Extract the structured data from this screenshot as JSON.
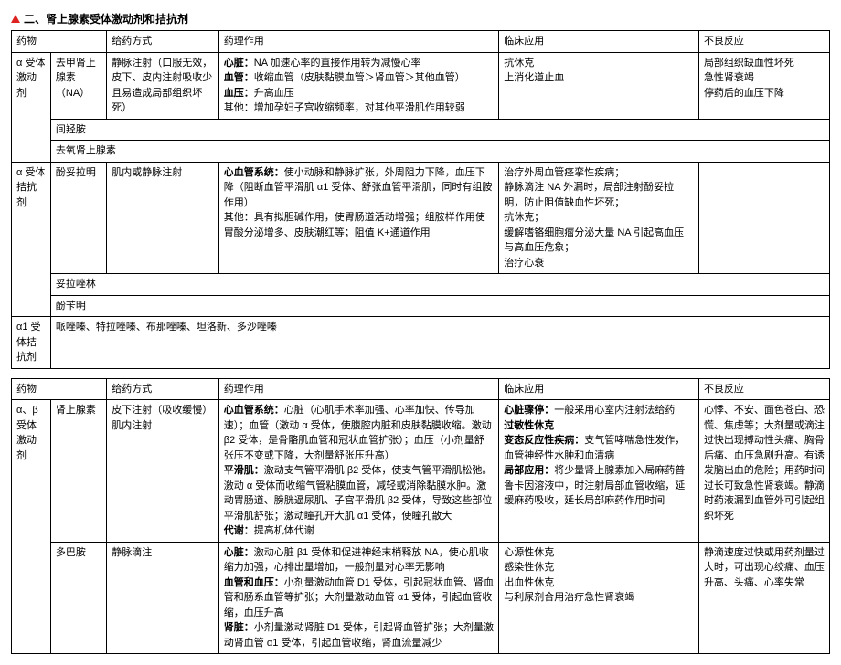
{
  "page_title": "二、肾上腺素受体激动剂和拮抗剂",
  "header": {
    "c0": "药物",
    "c2": "给药方式",
    "c3": "药理作用",
    "c4": "临床应用",
    "c5": "不良反应"
  },
  "t1": {
    "r1": {
      "cat": "α 受体激动剂",
      "drug": "去甲肾上腺素（NA）",
      "route": "静脉注射（口服无效，皮下、皮内注射吸收少且易造成局部组织坏死）",
      "pharm_b1": "心脏：",
      "pharm_t1": "NA 加速心率的直接作用转为减慢心率",
      "pharm_b2": "血管：",
      "pharm_t2": "收缩血管（皮肤黏膜血管＞肾血管＞其他血管）",
      "pharm_b3": "血压：",
      "pharm_t3": "升高血压",
      "pharm_t4": "其他：增加孕妇子宫收缩频率，对其他平滑肌作用较弱",
      "clin_l1": "抗休克",
      "clin_l2": "上消化道止血",
      "adv_l1": "局部组织缺血性坏死",
      "adv_l2": "急性肾衰竭",
      "adv_l3": "停药后的血压下降"
    },
    "r2": {
      "drug": "间羟胺"
    },
    "r3": {
      "drug": "去氧肾上腺素"
    },
    "r4": {
      "cat": "α 受体拮抗剂",
      "drug": "酚妥拉明",
      "route": "肌内或静脉注射",
      "pharm_b1": "心血管系统：",
      "pharm_t1": "使小动脉和静脉扩张，外周阻力下降，血压下降（阻断血管平滑肌 α1 受体、舒张血管平滑肌，同时有组胺作用）",
      "pharm_t2": "其他：具有拟胆碱作用，使胃肠道活动增强；组胺样作用使胃酸分泌增多、皮肤潮红等；阻值 K+通道作用",
      "clin_l1": "治疗外周血管痉挛性疾病；",
      "clin_l2": "静脉滴注 NA 外漏时，局部注射酚妥拉明，防止阻值缺血性坏死；",
      "clin_l3": "抗休克；",
      "clin_l4": "缓解嗜铬细胞瘤分泌大量 NA 引起高血压与高血压危象；",
      "clin_l5": "治疗心衰"
    },
    "r5": {
      "drug": "妥拉唑林"
    },
    "r6": {
      "drug": "酚苄明"
    },
    "r7": {
      "cat": "α1 受体拮抗剂",
      "drugs": "哌唑嗪、特拉唑嗪、布那唑嗪、坦洛新、多沙唑嗪"
    }
  },
  "t2": {
    "r1": {
      "cat": "α、β受体激动剂",
      "drug": "肾上腺素",
      "route_l1": "皮下注射（吸收缓慢）",
      "route_l2": "肌内注射",
      "pharm_b1": "心血管系统：",
      "pharm_t1": "心脏（心肌手术率加强、心率加快、传导加速）；血管（激动 α 受体，使腹腔内脏和皮肤黏膜收缩。激动 β2 受体，是骨骼肌血管和冠状血管扩张）；血压（小剂量舒张压不变或下降，大剂量舒张压升高）",
      "pharm_b2": "平滑肌：",
      "pharm_t2": "激动支气管平滑肌 β2 受体，使支气管平滑肌松弛。激动 α 受体而收缩气管粘膜血管，减轻或消除黏膜水肿。激动胃肠道、膀胱逼尿肌、子宫平滑肌 β2 受体，导致这些部位平滑肌舒张；激动瞳孔开大肌 α1 受体，使瞳孔散大",
      "pharm_b3": "代谢：",
      "pharm_t3": "提高机体代谢",
      "clin_b1": "心脏骤停：",
      "clin_t1": "一般采用心室内注射法给药",
      "clin_b2": "过敏性休克",
      "clin_b3": "变态反应性疾病：",
      "clin_t3": "支气管哮喘急性发作，血管神经性水肿和血清病",
      "clin_b4": "局部应用：",
      "clin_t4": "将少量肾上腺素加入局麻药普鲁卡因溶液中，时注射局部血管收缩，延缓麻药吸收，延长局部麻药作用时间",
      "adv": "心悸、不安、面色苍白、恐慌、焦虑等；大剂量或滴注过快出现搏动性头痛、胸骨后痛、血压急剧升高。有诱发脑出血的危险；用药时间过长可致急性肾衰竭。静滴时药液漏到血管外可引起组织坏死"
    },
    "r2": {
      "drug": "多巴胺",
      "route": "静脉滴注",
      "pharm_b1": "心脏：",
      "pharm_t1": "激动心脏 β1 受体和促进神经末梢释放 NA，使心肌收缩力加强，心排出量增加，一般剂量对心率无影响",
      "pharm_b2": "血管和血压：",
      "pharm_t2": "小剂量激动血管 D1 受体，引起冠状血管、肾血管和肠系血管等扩张；大剂量激动血管 α1 受体，引起血管收缩，血压升高",
      "pharm_b3": "肾脏：",
      "pharm_t3": "小剂量激动肾脏 D1 受体，引起肾血管扩张；大剂量激动肾血管 α1 受体，引起血管收缩，肾血流量减少",
      "clin_l1": "心源性休克",
      "clin_l2": "感染性休克",
      "clin_l3": "出血性休克",
      "clin_l4": "与利尿剂合用治疗急性肾衰竭",
      "adv": "静滴速度过快或用药剂量过大时，可出现心绞痛、血压升高、头痛、心率失常"
    }
  }
}
